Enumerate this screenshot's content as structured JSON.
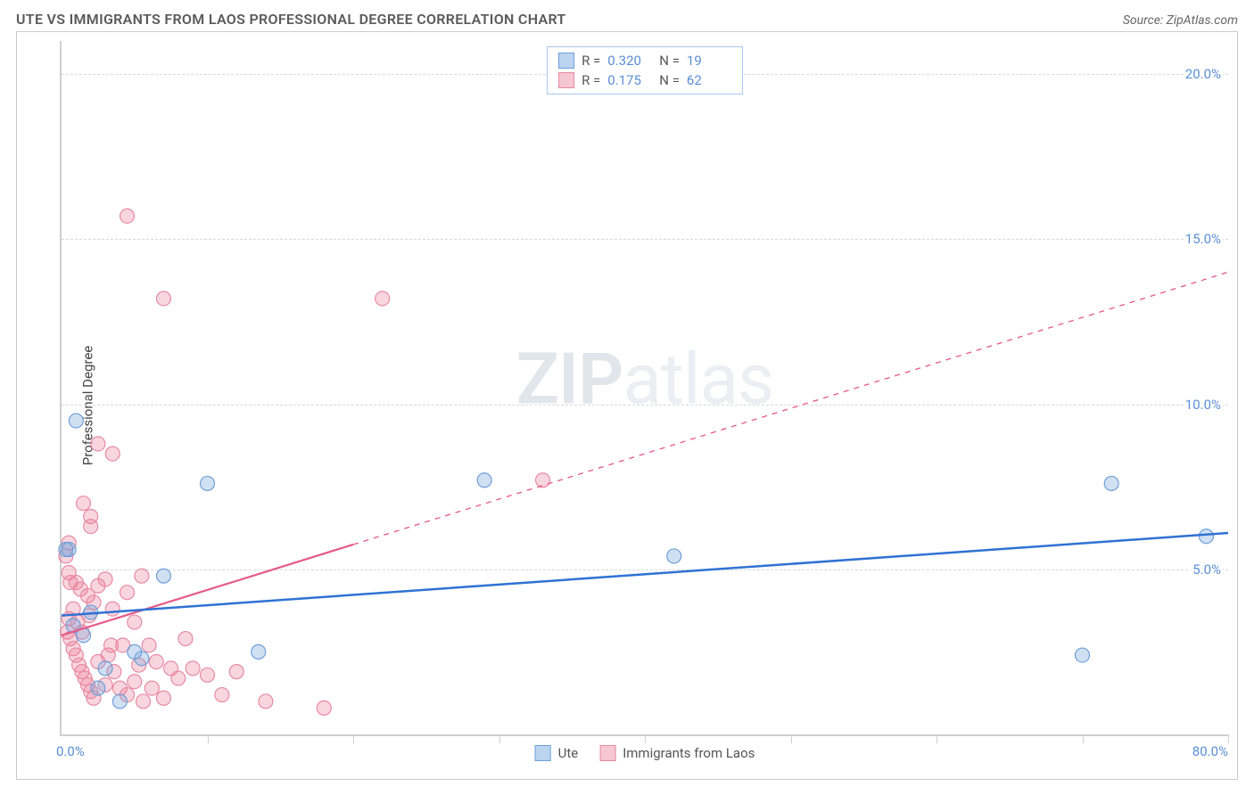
{
  "header": {
    "title": "UTE VS IMMIGRANTS FROM LAOS PROFESSIONAL DEGREE CORRELATION CHART",
    "source_prefix": "Source: ",
    "source_name": "ZipAtlas.com"
  },
  "watermark": {
    "zip": "ZIP",
    "atlas": "atlas"
  },
  "chart": {
    "type": "scatter-with-regression",
    "y_axis_label": "Professional Degree",
    "x_min": 0,
    "x_max": 80,
    "y_min": 0,
    "y_max": 21,
    "x_origin_label": "0.0%",
    "x_max_label": "80.0%",
    "y_ticks": [
      {
        "v": 5,
        "label": "5.0%"
      },
      {
        "v": 10,
        "label": "10.0%"
      },
      {
        "v": 15,
        "label": "15.0%"
      },
      {
        "v": 20,
        "label": "20.0%"
      }
    ],
    "x_tick_positions_pct": [
      12.5,
      25,
      37.5,
      50,
      62.5,
      75,
      87.5,
      100
    ],
    "grid_color": "#d8d8d8",
    "axis_color": "#cfcfcf",
    "tick_label_color": "#5a8fd6",
    "background_color": "#ffffff",
    "series": {
      "ute": {
        "label": "Ute",
        "fill": "rgba(120,165,220,0.35)",
        "stroke": "#6f9fd8",
        "swatch_fill": "#bcd4f0",
        "swatch_border": "#6f9fd8",
        "marker_r": 8,
        "R_label": "R =",
        "R_value": "0.320",
        "N_label": "N =",
        "N_value": "19",
        "points": [
          {
            "x": 1.0,
            "y": 9.5
          },
          {
            "x": 10.0,
            "y": 7.6
          },
          {
            "x": 29.0,
            "y": 7.7
          },
          {
            "x": 72.0,
            "y": 7.6
          },
          {
            "x": 78.5,
            "y": 6.0
          },
          {
            "x": 42.0,
            "y": 5.4
          },
          {
            "x": 0.5,
            "y": 5.6
          },
          {
            "x": 0.3,
            "y": 5.6
          },
          {
            "x": 7.0,
            "y": 4.8
          },
          {
            "x": 2.0,
            "y": 3.7
          },
          {
            "x": 5.5,
            "y": 2.3
          },
          {
            "x": 5.0,
            "y": 2.5
          },
          {
            "x": 13.5,
            "y": 2.5
          },
          {
            "x": 70.0,
            "y": 2.4
          },
          {
            "x": 0.8,
            "y": 3.3
          },
          {
            "x": 1.5,
            "y": 3.0
          },
          {
            "x": 3.0,
            "y": 2.0
          },
          {
            "x": 2.5,
            "y": 1.4
          },
          {
            "x": 4.0,
            "y": 1.0
          }
        ],
        "regression": {
          "stroke": "#2f72d4",
          "width": 2.5,
          "dash_after_x": null,
          "x1": 0,
          "y1": 3.6,
          "x2": 80,
          "y2": 6.1
        }
      },
      "laos": {
        "label": "Immigrants from Laos",
        "fill": "rgba(235,120,150,0.30)",
        "stroke": "#e78aa3",
        "swatch_fill": "#f6c7d3",
        "swatch_border": "#e78aa3",
        "marker_r": 8,
        "R_label": "R =",
        "R_value": "0.175",
        "N_label": "N =",
        "N_value": "62",
        "points": [
          {
            "x": 4.5,
            "y": 15.7
          },
          {
            "x": 7.0,
            "y": 13.2
          },
          {
            "x": 22.0,
            "y": 13.2
          },
          {
            "x": 33.0,
            "y": 7.7
          },
          {
            "x": 2.5,
            "y": 8.8
          },
          {
            "x": 3.5,
            "y": 8.5
          },
          {
            "x": 1.5,
            "y": 7.0
          },
          {
            "x": 2.0,
            "y": 6.6
          },
          {
            "x": 2.0,
            "y": 6.3
          },
          {
            "x": 0.5,
            "y": 5.8
          },
          {
            "x": 0.3,
            "y": 5.4
          },
          {
            "x": 0.5,
            "y": 4.9
          },
          {
            "x": 0.6,
            "y": 4.6
          },
          {
            "x": 1.0,
            "y": 4.6
          },
          {
            "x": 1.3,
            "y": 4.4
          },
          {
            "x": 1.8,
            "y": 4.2
          },
          {
            "x": 2.2,
            "y": 4.0
          },
          {
            "x": 2.5,
            "y": 4.5
          },
          {
            "x": 3.0,
            "y": 4.7
          },
          {
            "x": 3.5,
            "y": 3.8
          },
          {
            "x": 4.5,
            "y": 4.3
          },
          {
            "x": 5.0,
            "y": 3.4
          },
          {
            "x": 5.5,
            "y": 4.8
          },
          {
            "x": 6.0,
            "y": 2.7
          },
          {
            "x": 6.5,
            "y": 2.2
          },
          {
            "x": 7.5,
            "y": 2.0
          },
          {
            "x": 8.0,
            "y": 1.7
          },
          {
            "x": 8.5,
            "y": 2.9
          },
          {
            "x": 9.0,
            "y": 2.0
          },
          {
            "x": 10.0,
            "y": 1.8
          },
          {
            "x": 11.0,
            "y": 1.2
          },
          {
            "x": 12.0,
            "y": 1.9
          },
          {
            "x": 14.0,
            "y": 1.0
          },
          {
            "x": 18.0,
            "y": 0.8
          },
          {
            "x": 0.4,
            "y": 3.1
          },
          {
            "x": 0.6,
            "y": 2.9
          },
          {
            "x": 0.8,
            "y": 2.6
          },
          {
            "x": 1.0,
            "y": 2.4
          },
          {
            "x": 1.2,
            "y": 2.1
          },
          {
            "x": 1.4,
            "y": 1.9
          },
          {
            "x": 1.6,
            "y": 1.7
          },
          {
            "x": 1.8,
            "y": 1.5
          },
          {
            "x": 2.0,
            "y": 1.3
          },
          {
            "x": 2.2,
            "y": 1.1
          },
          {
            "x": 2.5,
            "y": 2.2
          },
          {
            "x": 3.0,
            "y": 1.5
          },
          {
            "x": 3.2,
            "y": 2.4
          },
          {
            "x": 3.4,
            "y": 2.7
          },
          {
            "x": 3.6,
            "y": 1.9
          },
          {
            "x": 4.0,
            "y": 1.4
          },
          {
            "x": 4.2,
            "y": 2.7
          },
          {
            "x": 4.5,
            "y": 1.2
          },
          {
            "x": 5.0,
            "y": 1.6
          },
          {
            "x": 5.3,
            "y": 2.1
          },
          {
            "x": 5.6,
            "y": 1.0
          },
          {
            "x": 6.2,
            "y": 1.4
          },
          {
            "x": 7.0,
            "y": 1.1
          },
          {
            "x": 0.5,
            "y": 3.5
          },
          {
            "x": 0.8,
            "y": 3.8
          },
          {
            "x": 1.1,
            "y": 3.4
          },
          {
            "x": 1.4,
            "y": 3.1
          },
          {
            "x": 1.9,
            "y": 3.6
          }
        ],
        "regression": {
          "stroke": "#e65a88",
          "width": 2.2,
          "dash_after_x": 20,
          "x1": 0,
          "y1": 3.0,
          "x2": 80,
          "y2": 14.0
        }
      }
    }
  }
}
